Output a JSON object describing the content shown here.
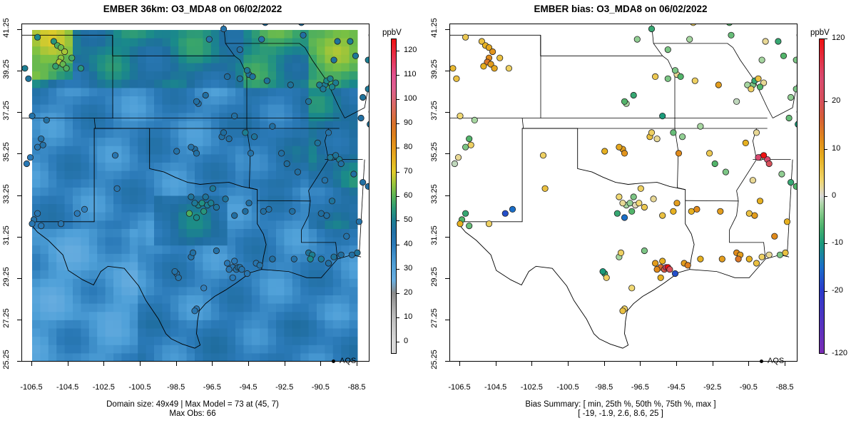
{
  "left_panel": {
    "title": "EMBER 36km: O3_MDA8 on 06/02/2022",
    "colorbar": {
      "unit": "ppbV",
      "ticks": [
        "120",
        "110",
        "100",
        "90",
        "80",
        "70",
        "60",
        "50",
        "40",
        "30",
        "20",
        "10",
        "0"
      ],
      "tick_values": [
        120,
        110,
        100,
        90,
        80,
        70,
        60,
        50,
        40,
        30,
        20,
        10,
        0
      ],
      "range": [
        -5,
        125
      ]
    },
    "legend_label": "AQS",
    "footer_line1": "Domain size: 49x49 | Max Model = 73 at (45, 7)",
    "footer_line2": "Max Obs: 66"
  },
  "right_panel": {
    "title": "EMBER bias: O3_MDA8 on 06/02/2022",
    "colorbar": {
      "unit": "ppbV",
      "ticks": [
        "120",
        "20",
        "10",
        "0",
        "-10",
        "-20",
        "-120"
      ],
      "tick_values": [
        120,
        20,
        10,
        0,
        -10,
        -20,
        -120
      ]
    },
    "legend_label": "AQS",
    "footer_line1": "Bias Summary: [ min, 25th %, 50th %, 75th %, max ]",
    "footer_line2": "[ -19,   -1.9,   2.6,   8.6,   25 ]"
  },
  "axes": {
    "x_ticks": [
      "-106.5",
      "-104.5",
      "-102.5",
      "-100.5",
      "-98.5",
      "-96.5",
      "-94.5",
      "-92.5",
      "-90.5",
      "-88.5"
    ],
    "x_values": [
      -106.5,
      -104.5,
      -102.5,
      -100.5,
      -98.5,
      -96.5,
      -94.5,
      -92.5,
      -90.5,
      -88.5
    ],
    "y_ticks": [
      "41.25",
      "39.25",
      "37.25",
      "35.25",
      "33.25",
      "31.25",
      "29.25",
      "27.25",
      "25.25"
    ],
    "y_values": [
      41.25,
      39.25,
      37.25,
      35.25,
      33.25,
      31.25,
      29.25,
      27.25,
      25.25
    ]
  },
  "colors": {
    "model_mid": "#3a8fc4",
    "model_high": "#3aa66a",
    "bias_pos": "#e08a1a",
    "bias_neg": "#1a9a7a"
  }
}
